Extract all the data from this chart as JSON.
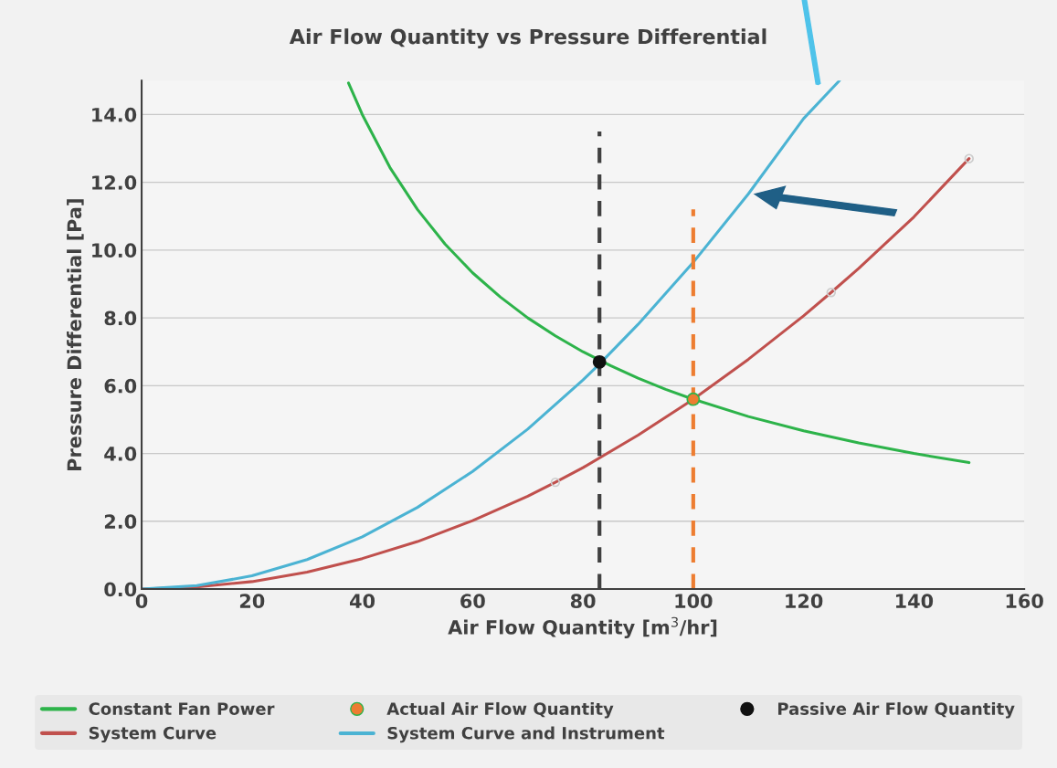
{
  "chart_data": {
    "type": "line",
    "title": "Air Flow Quantity vs Pressure Differential",
    "xlabel": "Air Flow Quantity [m$^{3}$/hr]",
    "ylabel": "Pressure Differential [Pa]",
    "xlim": [
      0,
      160
    ],
    "xticks": [
      0,
      20,
      40,
      60,
      80,
      100,
      120,
      140,
      160
    ],
    "ylim": [
      0,
      15
    ],
    "yticks": [
      {
        "value": 0,
        "label": "0.0"
      },
      {
        "value": 2,
        "label": "2.0"
      },
      {
        "value": 4,
        "label": "4.0"
      },
      {
        "value": 6,
        "label": "6.0"
      },
      {
        "value": 8,
        "label": "8.0"
      },
      {
        "value": 10,
        "label": "10.0"
      },
      {
        "value": 12,
        "label": "12.0"
      },
      {
        "value": 14,
        "label": "14.0"
      }
    ],
    "grid": "y",
    "legend": "bottom",
    "series": [
      {
        "name": "Constant Fan Power",
        "color": "#2db34a",
        "marker": "none",
        "line_style": "solid",
        "x": [
          37.5,
          40,
          45,
          50,
          55,
          60,
          65,
          70,
          75,
          80,
          85,
          90,
          95,
          100,
          110,
          120,
          130,
          140,
          150
        ],
        "values": [
          14.93,
          14.0,
          12.44,
          11.2,
          10.18,
          9.33,
          8.62,
          8.0,
          7.47,
          7.0,
          6.59,
          6.22,
          5.89,
          5.6,
          5.09,
          4.67,
          4.31,
          4.0,
          3.73
        ]
      },
      {
        "name": "System Curve",
        "color": "#c0504d",
        "marker": "none",
        "line_style": "solid",
        "x": [
          0,
          10,
          20,
          30,
          40,
          50,
          60,
          70,
          75,
          80,
          90,
          100,
          110,
          120,
          125,
          130,
          140,
          150
        ],
        "values": [
          0,
          0.06,
          0.22,
          0.5,
          0.9,
          1.4,
          2.02,
          2.74,
          3.15,
          3.58,
          4.54,
          5.6,
          6.78,
          8.06,
          8.75,
          9.46,
          10.98,
          12.7
        ]
      },
      {
        "name": "Actual Air Flow Quantity",
        "type": "scatter",
        "color": "#ed7d31",
        "marker": "circle",
        "x": [
          100
        ],
        "values": [
          5.6
        ]
      },
      {
        "name": "System Curve and Instrument",
        "color": "#4bb3d3",
        "marker": "none",
        "line_style": "solid",
        "x": [
          0,
          10,
          20,
          30,
          40,
          50,
          60,
          70,
          80,
          83,
          90,
          100,
          110,
          120,
          126.5
        ],
        "values": [
          0,
          0.1,
          0.39,
          0.87,
          1.54,
          2.41,
          3.47,
          4.72,
          6.17,
          6.64,
          7.81,
          9.64,
          11.66,
          13.88,
          15.0
        ]
      },
      {
        "name": "Passive Air Flow Quantity",
        "type": "scatter",
        "color": "#111111",
        "marker": "circle",
        "x": [
          83
        ],
        "values": [
          6.7
        ]
      },
      {
        "type": "scatter",
        "color": "#cccccc",
        "marker": "circle",
        "x": [
          75,
          125,
          150
        ],
        "values": [
          3.15,
          8.75,
          12.7
        ]
      },
      {
        "color": "#404040",
        "marker": "none",
        "line_style": "dashed",
        "x": [
          83,
          83
        ],
        "values": [
          0,
          13.5
        ]
      },
      {
        "color": "#ed7d31",
        "marker": "none",
        "line_style": "dashed",
        "x": [
          100,
          100
        ],
        "values": [
          0,
          11.2
        ]
      }
    ]
  }
}
